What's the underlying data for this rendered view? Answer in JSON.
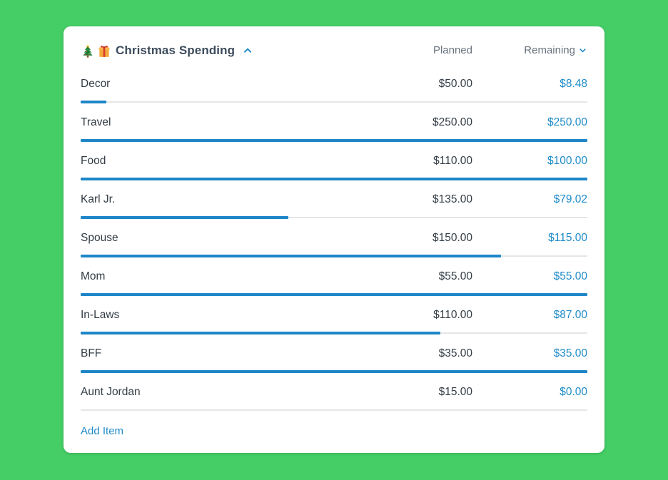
{
  "colors": {
    "background": "#45cd66",
    "accent_blue": "#1e8bc9",
    "bar_blue": "#1e86c8",
    "track_gray": "#e4e7e9",
    "title_text": "#3d4c5c",
    "body_text": "#333c45",
    "muted_text": "#68737e"
  },
  "header": {
    "title": "Christmas Spending",
    "icons": [
      "christmas-tree-icon",
      "gift-icon"
    ],
    "collapse_icon": "chevron-up-icon",
    "columns": {
      "planned": "Planned",
      "remaining": "Remaining"
    },
    "sort_icon": "chevron-down-icon"
  },
  "items": [
    {
      "name": "Decor",
      "planned": "$50.00",
      "remaining": "$8.48",
      "progress_percent": 5
    },
    {
      "name": "Travel",
      "planned": "$250.00",
      "remaining": "$250.00",
      "progress_percent": 100
    },
    {
      "name": "Food",
      "planned": "$110.00",
      "remaining": "$100.00",
      "progress_percent": 100
    },
    {
      "name": "Karl Jr.",
      "planned": "$135.00",
      "remaining": "$79.02",
      "progress_percent": 41
    },
    {
      "name": "Spouse",
      "planned": "$150.00",
      "remaining": "$115.00",
      "progress_percent": 83
    },
    {
      "name": "Mom",
      "planned": "$55.00",
      "remaining": "$55.00",
      "progress_percent": 100
    },
    {
      "name": "In-Laws",
      "planned": "$110.00",
      "remaining": "$87.00",
      "progress_percent": 71
    },
    {
      "name": "BFF",
      "planned": "$35.00",
      "remaining": "$35.00",
      "progress_percent": 100
    },
    {
      "name": "Aunt Jordan",
      "planned": "$15.00",
      "remaining": "$0.00",
      "progress_percent": 0
    }
  ],
  "footer": {
    "add_item": "Add Item"
  }
}
